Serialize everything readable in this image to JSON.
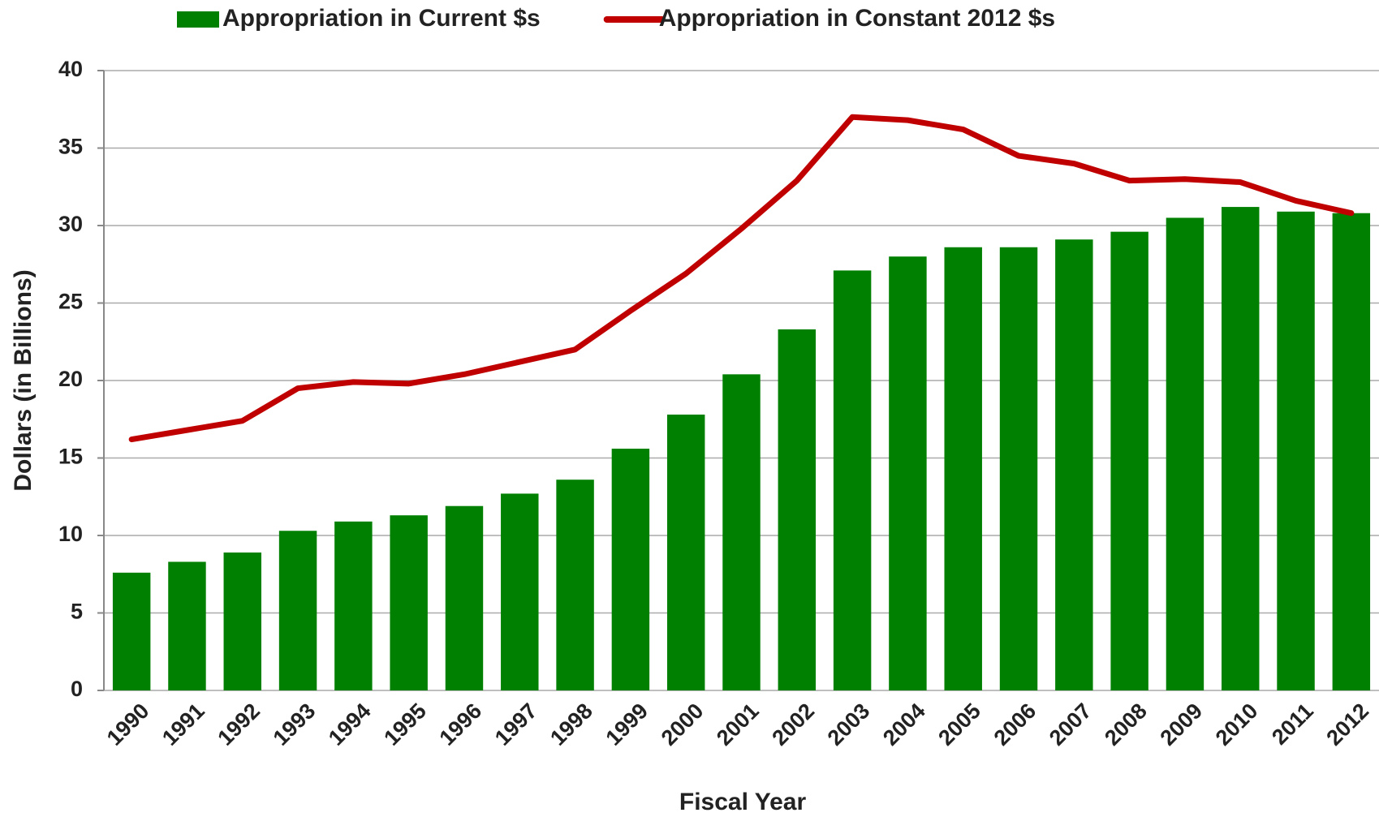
{
  "chart_data": {
    "type": "bar_line",
    "x_label": "Fiscal Year",
    "y_label": "Dollars (in Billions)",
    "categories": [
      "1990",
      "1991",
      "1992",
      "1993",
      "1994",
      "1995",
      "1996",
      "1997",
      "1998",
      "1999",
      "2000",
      "2001",
      "2002",
      "2003",
      "2004",
      "2005",
      "2006",
      "2007",
      "2008",
      "2009",
      "2010",
      "2011",
      "2012"
    ],
    "series": [
      {
        "name": "Appropriation in Current $s",
        "type": "bar",
        "color": "#008000",
        "values": [
          7.6,
          8.3,
          8.9,
          10.3,
          10.9,
          11.3,
          11.9,
          12.7,
          13.6,
          15.6,
          17.8,
          20.4,
          23.3,
          27.1,
          28.0,
          28.6,
          28.6,
          29.1,
          29.6,
          30.5,
          31.2,
          30.9,
          30.8
        ]
      },
      {
        "name": "Appropriation in Constant 2012 $s",
        "type": "line",
        "color": "#c00000",
        "values": [
          16.2,
          16.8,
          17.4,
          19.5,
          19.9,
          19.8,
          20.4,
          21.2,
          22.0,
          24.5,
          26.9,
          29.8,
          32.9,
          37.0,
          36.8,
          36.2,
          34.5,
          34.0,
          32.9,
          33.0,
          32.8,
          31.6,
          30.8
        ]
      }
    ],
    "ylim": [
      0,
      40
    ],
    "yticks": [
      0,
      5,
      10,
      15,
      20,
      25,
      30,
      35,
      40
    ],
    "grid": true,
    "legend": "top"
  }
}
